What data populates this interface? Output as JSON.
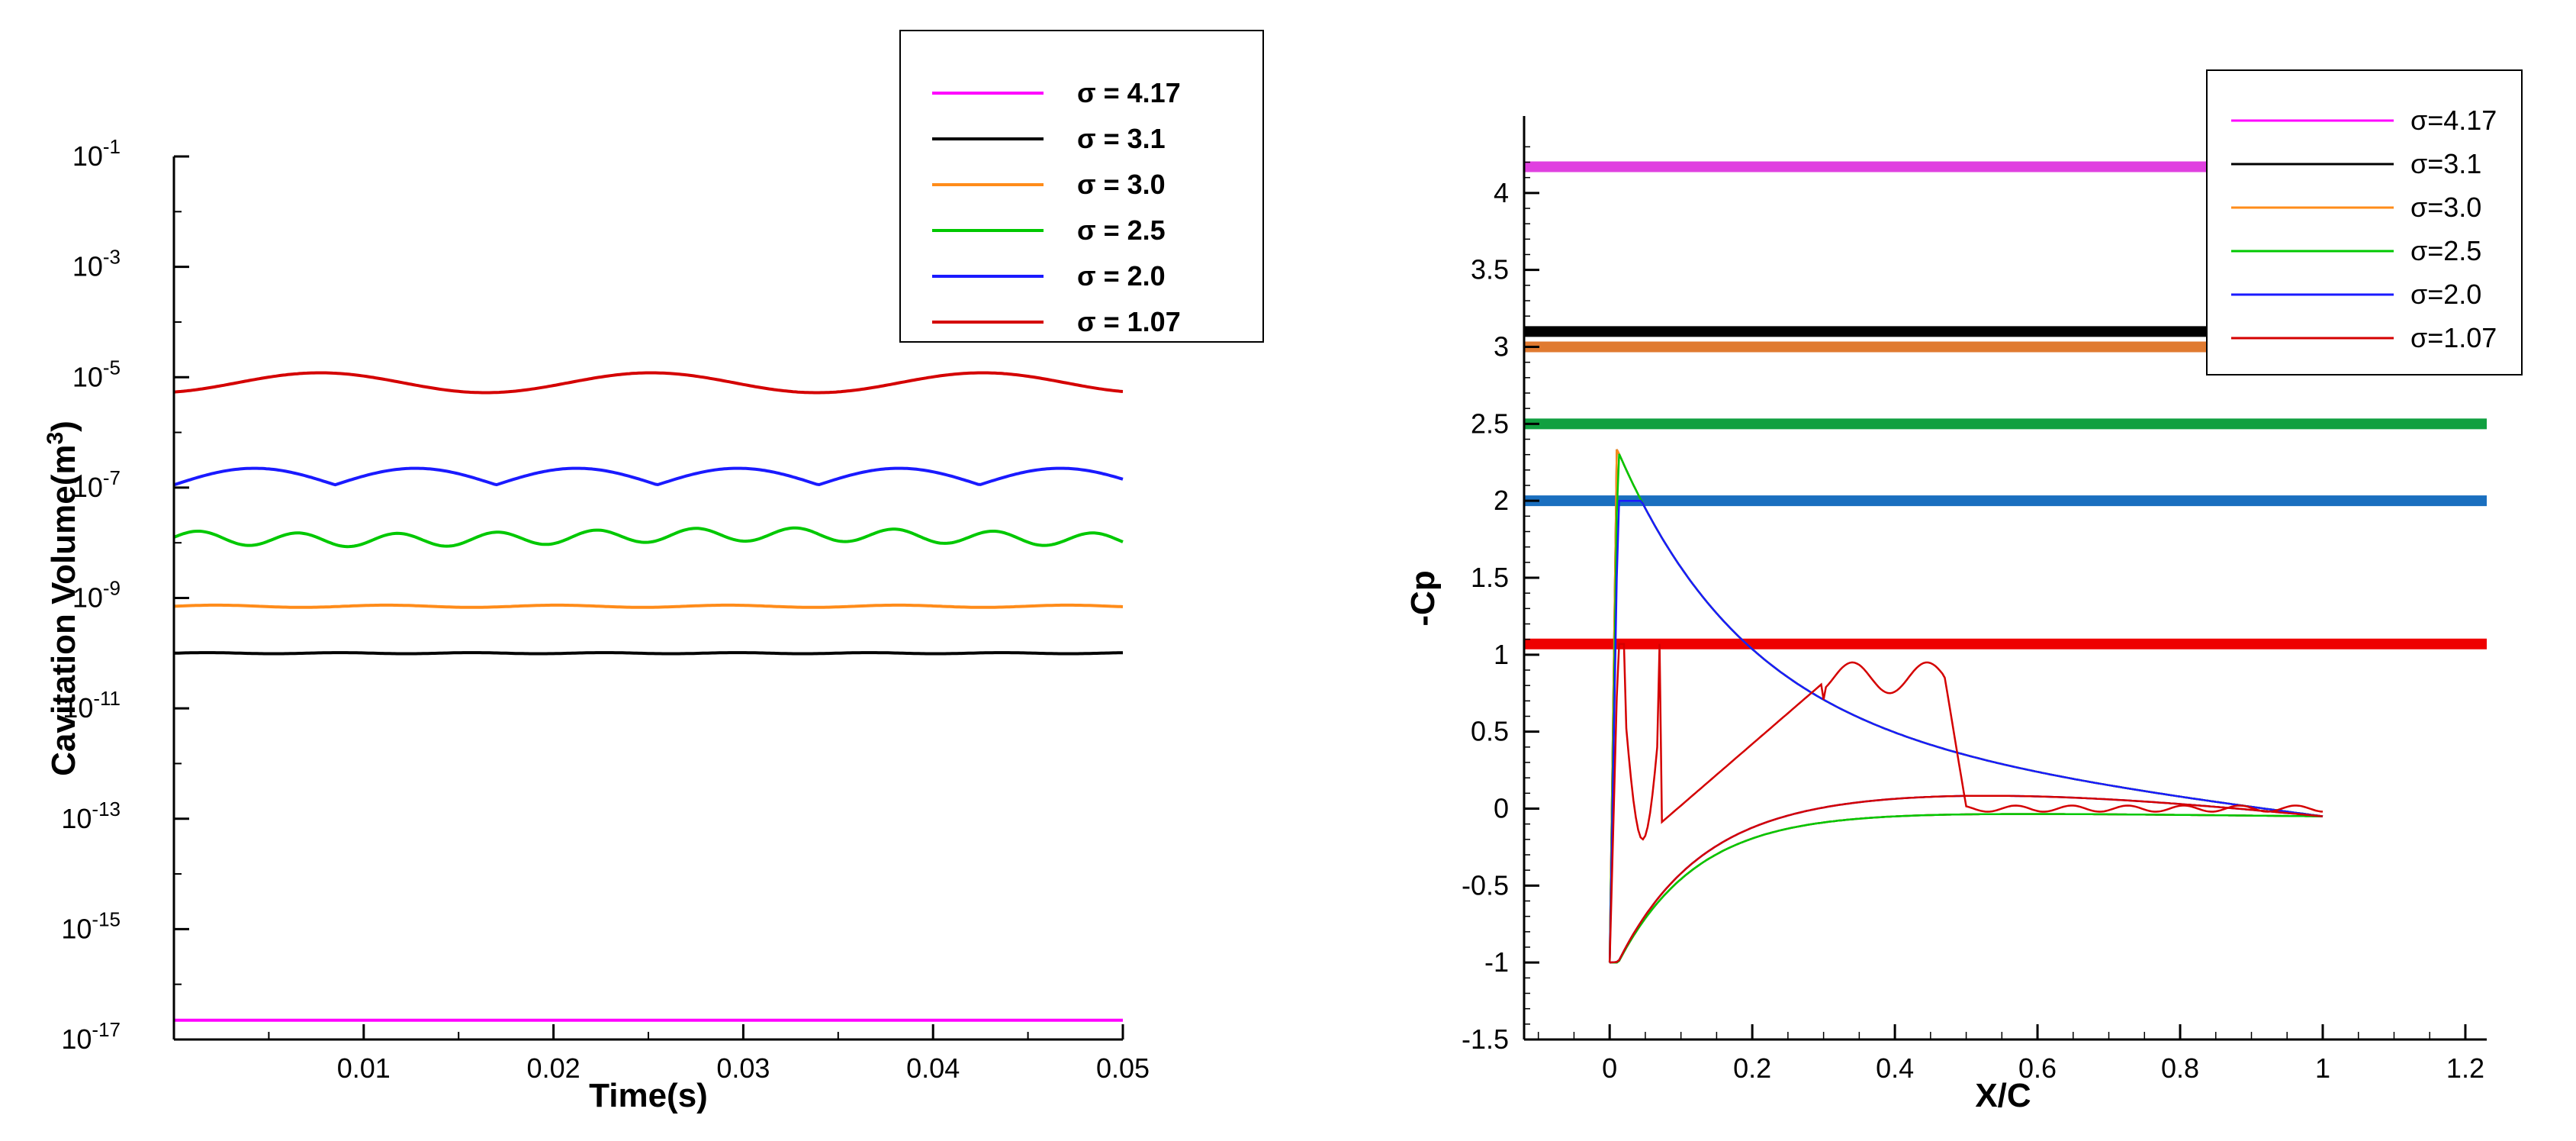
{
  "chart_data": [
    {
      "type": "line",
      "xlabel": "Time(s)",
      "ylabel": "Cavitation Volume(m3)",
      "ylabel_base": "Cavitation Volume(m",
      "ylabel_sup": "3",
      "ylabel_end": ")",
      "yscale": "log",
      "xlim": [
        0.0,
        0.05
      ],
      "ylim_exponents": [
        -17,
        -1
      ],
      "x_ticks": [
        "0.01",
        "0.02",
        "0.03",
        "0.04",
        "0.05"
      ],
      "y_ticks": [
        {
          "base": "10",
          "exp": "-1"
        },
        {
          "base": "10",
          "exp": "-3"
        },
        {
          "base": "10",
          "exp": "-5"
        },
        {
          "base": "10",
          "exp": "-7"
        },
        {
          "base": "10",
          "exp": "-9"
        },
        {
          "base": "10",
          "exp": "-11"
        },
        {
          "base": "10",
          "exp": "-13"
        },
        {
          "base": "10",
          "exp": "-15"
        },
        {
          "base": "10",
          "exp": "-17"
        }
      ],
      "legend_position": "top-right",
      "series": [
        {
          "name": "σ = 4.17",
          "color": "#ff00ff",
          "value_log10": -16.65
        },
        {
          "name": "σ = 3.1",
          "color": "#000000",
          "value_log10": -10.0
        },
        {
          "name": "σ = 3.0",
          "color": "#ff8c1a",
          "value_log10": -9.15
        },
        {
          "name": "σ = 2.5",
          "color": "#00c800",
          "value_log10": -7.9
        },
        {
          "name": "σ = 2.0",
          "color": "#1a1aff",
          "value_log10": -6.8
        },
        {
          "name": "σ = 1.07",
          "color": "#d40000",
          "value_log10": -5.1
        }
      ]
    },
    {
      "type": "line",
      "xlabel": "X/C",
      "ylabel": "-Cp",
      "xlim": [
        -0.12,
        1.23
      ],
      "ylim": [
        -1.5,
        4.5
      ],
      "x_ticks": [
        "0",
        "0.2",
        "0.4",
        "0.6",
        "0.8",
        "1",
        "1.2"
      ],
      "y_ticks": [
        "4",
        "3.5",
        "3",
        "2.5",
        "2",
        "1.5",
        "1",
        "0.5",
        "0",
        "-0.5",
        "-1",
        "-1.5"
      ],
      "legend_position": "top-right",
      "series": [
        {
          "name": "σ=4.17",
          "color": "#ff00ff",
          "sigma": 4.17
        },
        {
          "name": "σ=3.1",
          "color": "#000000",
          "sigma": 3.1
        },
        {
          "name": "σ=3.0",
          "color": "#ff8c1a",
          "sigma": 3.0
        },
        {
          "name": "σ=2.5",
          "color": "#00c800",
          "sigma": 2.5
        },
        {
          "name": "σ=2.0",
          "color": "#1a1aff",
          "sigma": 2.0
        },
        {
          "name": "σ=1.07",
          "color": "#d40000",
          "sigma": 1.07
        }
      ],
      "reference_lines": [
        {
          "value": 4.17,
          "color": "#e040e0"
        },
        {
          "value": 3.1,
          "color": "#000000"
        },
        {
          "value": 3.0,
          "color": "#e07a30"
        },
        {
          "value": 2.5,
          "color": "#10a040"
        },
        {
          "value": 2.0,
          "color": "#1a6fbf"
        },
        {
          "value": 1.07,
          "color": "#ee0000"
        }
      ]
    }
  ]
}
